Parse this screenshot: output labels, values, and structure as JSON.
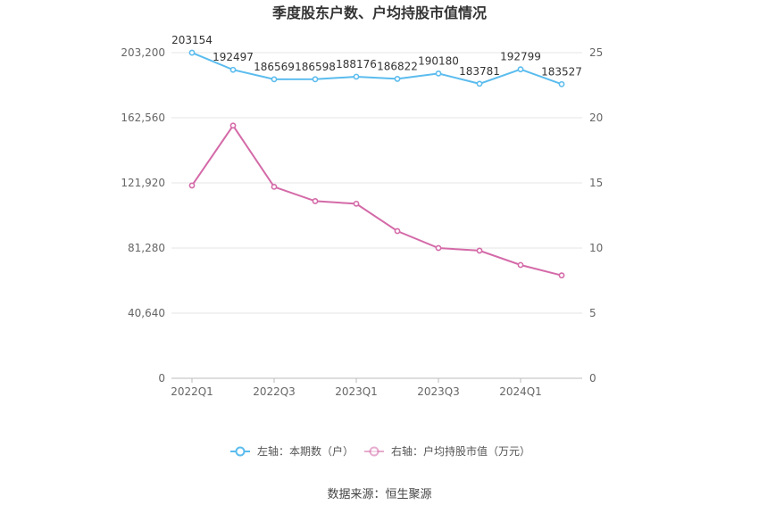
{
  "chart_data": {
    "type": "line",
    "title": "季度股东户数、户均持股市值情况",
    "categories": [
      "2022Q1",
      "2022Q2",
      "2022Q3",
      "2022Q4",
      "2023Q1",
      "2023Q2",
      "2023Q3",
      "2023Q4",
      "2024Q1",
      "2024Q2"
    ],
    "x_tick_labels": [
      "2022Q1",
      "2022Q3",
      "2023Q1",
      "2023Q3",
      "2024Q1"
    ],
    "left_axis": {
      "ylim": [
        0,
        203200
      ],
      "ticks": [
        "0",
        "40,640",
        "81,280",
        "121,920",
        "162,560",
        "203,200"
      ]
    },
    "right_axis": {
      "ylim": [
        0,
        25
      ],
      "ticks": [
        "0",
        "5",
        "10",
        "15",
        "20",
        "25"
      ]
    },
    "series": [
      {
        "name": "左轴：本期数（户）",
        "axis": "left",
        "color": "#5bbcee",
        "values": [
          203154,
          192497,
          186569,
          186598,
          188176,
          186822,
          190180,
          183781,
          192799,
          183527
        ],
        "labels": [
          "203154",
          "192497",
          "186569",
          "186598",
          "188176",
          "186822",
          "190180",
          "183781",
          "192799",
          "183527"
        ]
      },
      {
        "name": "右轴：户均持股市值（万元）",
        "axis": "right",
        "color": "#d46aa8",
        "values": [
          14.8,
          19.4,
          14.7,
          13.6,
          13.4,
          11.3,
          10.0,
          9.8,
          8.7,
          7.9
        ]
      }
    ],
    "legend_position": "bottom-center",
    "grid": true,
    "source": "数据来源：恒生聚源"
  }
}
